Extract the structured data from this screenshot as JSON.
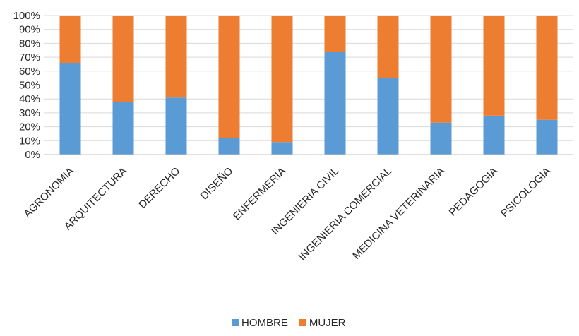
{
  "chart_data": {
    "type": "bar",
    "stacked": true,
    "percent": true,
    "categories": [
      "AGRONOMIA",
      "ARQUITECTURA",
      "DERECHO",
      "DISEÑO",
      "ENFERMERIA",
      "INGENIERIA CIVIL",
      "INGENIERIA COMERCIAL",
      "MEDICINA VETERINARIA",
      "PEDAGOGIA",
      "PSICOLOGIA"
    ],
    "series": [
      {
        "name": "HOMBRE",
        "color": "#5b9bd5",
        "values": [
          66,
          38,
          41,
          12,
          9,
          74,
          55,
          23,
          28,
          25
        ]
      },
      {
        "name": "MUJER",
        "color": "#ed7d31",
        "values": [
          34,
          62,
          59,
          88,
          91,
          26,
          45,
          77,
          72,
          75
        ]
      }
    ],
    "y_ticks": [
      "0%",
      "10%",
      "20%",
      "30%",
      "40%",
      "50%",
      "60%",
      "70%",
      "80%",
      "90%",
      "100%"
    ],
    "ylim": [
      0,
      100
    ],
    "grid": true,
    "legend_position": "bottom"
  }
}
